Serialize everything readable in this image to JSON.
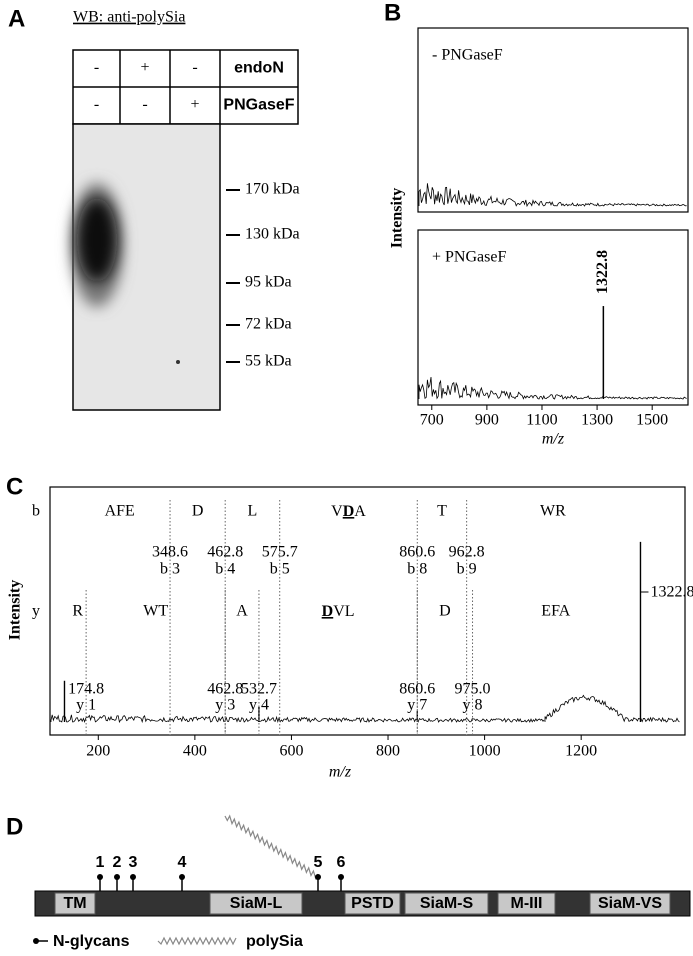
{
  "panel_a": {
    "label": "A",
    "title": "WB: anti-polySia",
    "treatments": [
      {
        "name": "endoN",
        "lanes": [
          "-",
          "+",
          "-"
        ]
      },
      {
        "name": "PNGaseF",
        "lanes": [
          "-",
          "-",
          "+"
        ]
      }
    ],
    "markers": [
      "170 kDa",
      "130 kDa",
      "95 kDa",
      "72 kDa",
      "55 kDa"
    ]
  },
  "chart_data": [
    {
      "type": "spectrum",
      "label": "B",
      "y_label": "Intensity",
      "x_label": "m/z",
      "xlim": [
        650,
        1630
      ],
      "xticks": [
        700,
        900,
        1100,
        1300,
        1500
      ],
      "ylim": [
        0,
        100
      ],
      "series": [
        {
          "name": "- PNGaseF",
          "x": [],
          "values": []
        },
        {
          "name": "+ PNGaseF",
          "x": [
            1322.8
          ],
          "values": [
            55
          ]
        }
      ]
    },
    {
      "type": "fragment_spectrum",
      "label": "C",
      "y_label": "Intensity",
      "x_label": "m/z",
      "xlim": [
        100,
        1415
      ],
      "xticks": [
        200,
        400,
        600,
        800,
        1000,
        1200
      ],
      "ylim": [
        0,
        100
      ],
      "peaks": {
        "x": [
          1322.8,
          130,
          532.7,
          860.6
        ],
        "values": [
          83,
          19,
          7,
          5
        ]
      },
      "ion_rows": [
        {
          "row": "b",
          "residues": [
            "AFE",
            "D",
            "L",
            {
              "parts": [
                "V",
                "D",
                "A"
              ],
              "emphasis": 1
            },
            "T",
            "WR"
          ],
          "mz": [
            348.6,
            462.8,
            575.7,
            860.6,
            962.8
          ],
          "names": [
            "b 3",
            "b 4",
            "b 5",
            "b 8",
            "b 9"
          ]
        },
        {
          "row": "y",
          "residues": [
            "R",
            "WT",
            "A",
            {
              "parts": [
                "D",
                "VL"
              ],
              "emphasis": 0
            },
            "D",
            "EFA"
          ],
          "mz": [
            174.8,
            462.8,
            532.7,
            860.6,
            {
              "value": 975,
              "label": "975.0"
            }
          ],
          "names": [
            "y 1",
            "y 3",
            "y 4",
            "y 7",
            "y 8"
          ]
        }
      ]
    }
  ],
  "panel_d": {
    "label": "D",
    "domains": [
      "TM",
      "SiaM-L",
      "PSTD",
      "SiaM-S",
      "M-III",
      "SiaM-VS"
    ],
    "sites": [
      1,
      2,
      3,
      4,
      5,
      6
    ],
    "legend": [
      "N-glycans",
      "polySia"
    ]
  }
}
